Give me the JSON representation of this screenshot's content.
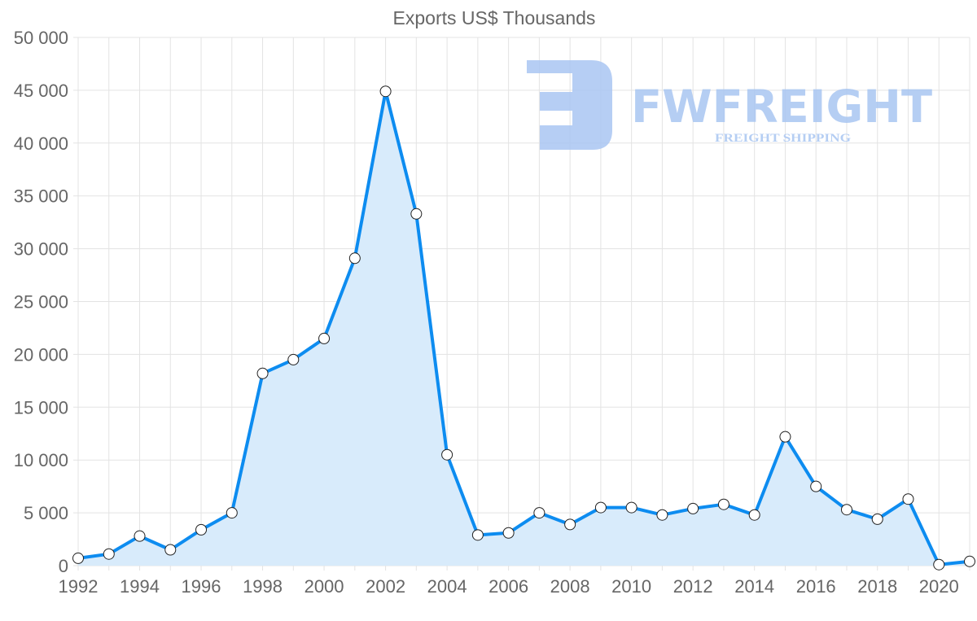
{
  "chart_data": {
    "type": "line",
    "title": "Exports US$ Thousands",
    "xlabel": "",
    "ylabel": "",
    "x": [
      1992,
      1993,
      1994,
      1995,
      1996,
      1997,
      1998,
      1999,
      2000,
      2001,
      2002,
      2003,
      2004,
      2005,
      2006,
      2007,
      2008,
      2009,
      2010,
      2011,
      2012,
      2013,
      2014,
      2015,
      2016,
      2017,
      2018,
      2019,
      2020,
      2021
    ],
    "series": [
      {
        "name": "Exports US$ Thousands",
        "values": [
          700,
          1100,
          2800,
          1500,
          3400,
          5000,
          18200,
          19500,
          21500,
          29100,
          44900,
          33300,
          10500,
          2900,
          3100,
          5000,
          3900,
          5500,
          5500,
          4800,
          5400,
          5800,
          4800,
          12200,
          7500,
          5300,
          4400,
          6300,
          100,
          400
        ],
        "line_color": "#0d8cf0",
        "fill_color": "#d8ebfb"
      }
    ],
    "ylim": [
      0,
      50000
    ],
    "xlim": [
      1992,
      2021
    ],
    "yticks": [
      "0",
      "5 000",
      "10 000",
      "15 000",
      "20 000",
      "25 000",
      "30 000",
      "35 000",
      "40 000",
      "45 000",
      "50 000"
    ],
    "xticks": [
      "1992",
      "1994",
      "1996",
      "1998",
      "2000",
      "2002",
      "2004",
      "2006",
      "2008",
      "2010",
      "2012",
      "2014",
      "2016",
      "2018",
      "2020"
    ],
    "grid": true,
    "legend": "none"
  },
  "watermark": {
    "brand": "FWFREIGHT",
    "tagline": "FREIGHT SHIPPING",
    "color": "#a9c6f2"
  }
}
